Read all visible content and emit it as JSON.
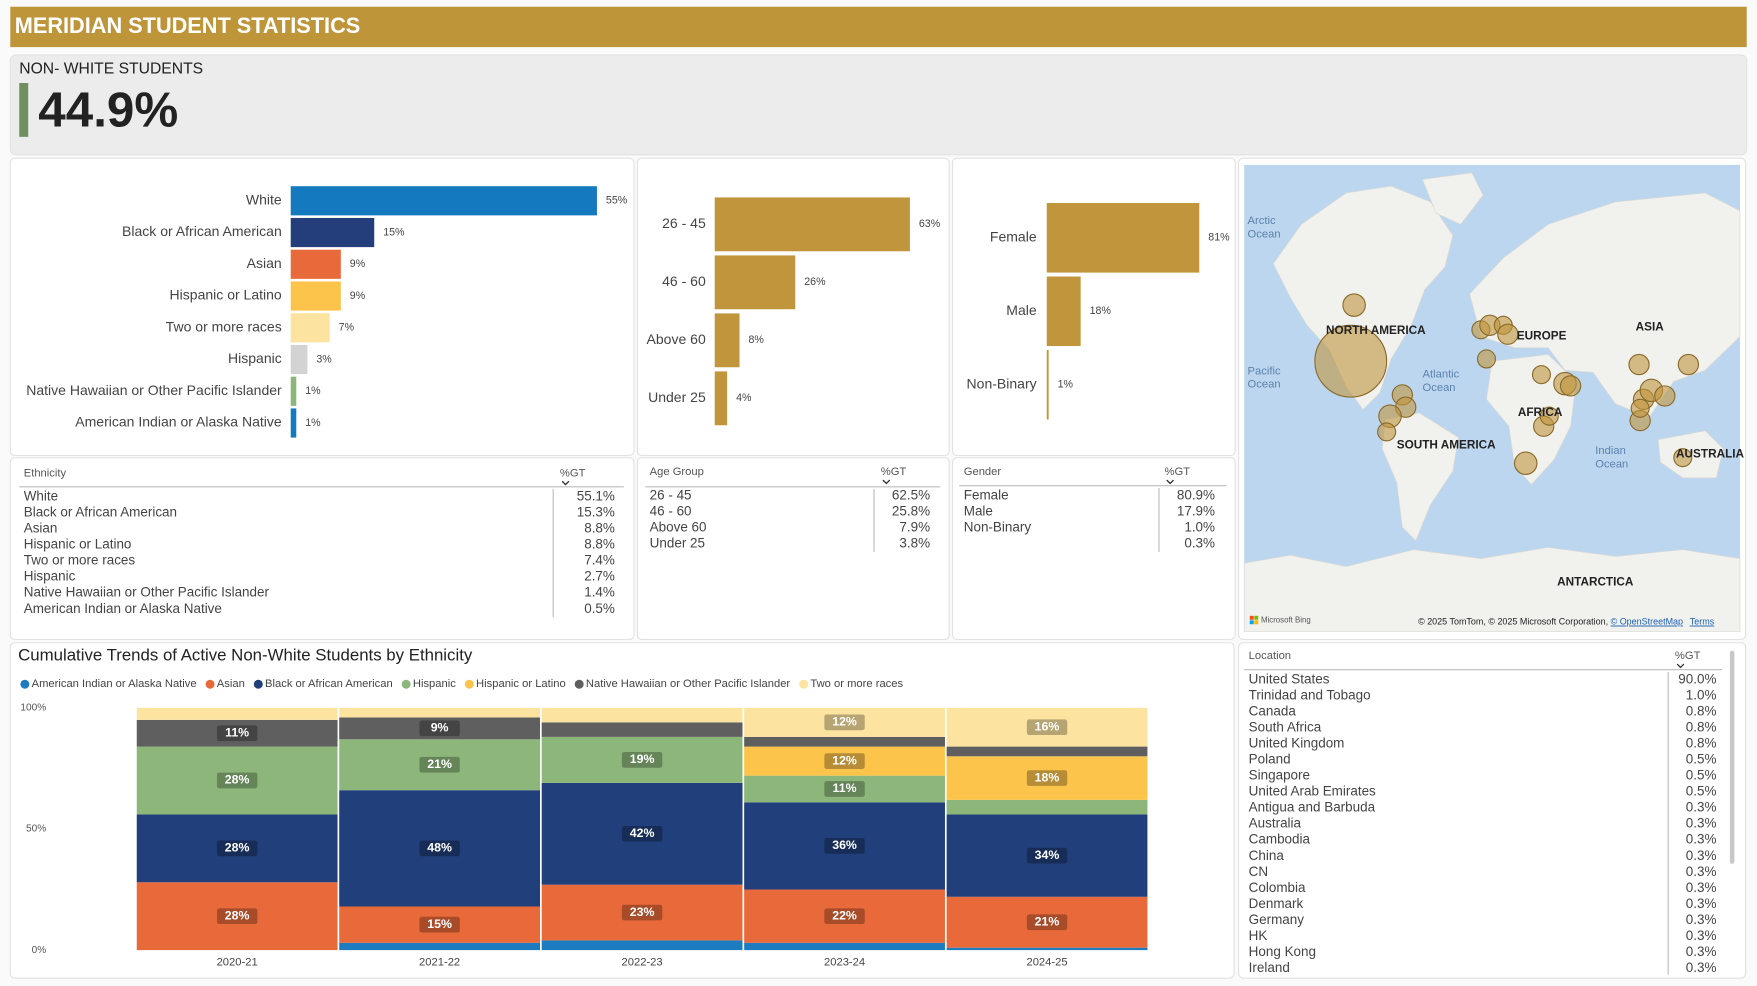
{
  "header": {
    "title": "MERIDIAN STUDENT STATISTICS"
  },
  "kpi": {
    "label": "NON- WHITE STUDENTS",
    "value": "44.9%"
  },
  "chart_data": [
    {
      "type": "bar",
      "orientation": "horizontal",
      "categories": [
        "White",
        "Black or African American",
        "Asian",
        "Hispanic or Latino",
        "Two or more races",
        "Hispanic",
        "Native Hawaiian or Other Pacific Islander",
        "American Indian or Alaska Native"
      ],
      "values": [
        55,
        15,
        9,
        9,
        7,
        3,
        1,
        1
      ],
      "value_labels": [
        "55%",
        "15%",
        "9%",
        "9%",
        "7%",
        "3%",
        "1%",
        "1%"
      ],
      "colors": [
        "#1479bf",
        "#233e7b",
        "#e8693a",
        "#fcc44b",
        "#fde3a0",
        "#d3d3d3",
        "#8db77a",
        "#1479bf"
      ]
    },
    {
      "type": "bar",
      "orientation": "horizontal",
      "categories": [
        "26 - 45",
        "46 - 60",
        "Above 60",
        "Under 25"
      ],
      "values": [
        63,
        26,
        8,
        4
      ],
      "value_labels": [
        "63%",
        "26%",
        "8%",
        "4%"
      ],
      "color": "#c0953b"
    },
    {
      "type": "bar",
      "orientation": "horizontal",
      "categories": [
        "Female",
        "Male",
        "Non-Binary"
      ],
      "values": [
        81,
        18,
        1
      ],
      "value_labels": [
        "81%",
        "18%",
        "1%"
      ],
      "color": "#c0953b"
    },
    {
      "type": "stacked_bar",
      "title": "Cumulative Trends of Active Non-White Students by Ethnicity",
      "categories": [
        "2020-21",
        "2021-22",
        "2022-23",
        "2023-24",
        "2024-25"
      ],
      "ylim": [
        0,
        100
      ],
      "yticks": [
        {
          "value": 0,
          "label": "0%"
        },
        {
          "value": 50,
          "label": "50%"
        },
        {
          "value": 100,
          "label": "100%"
        }
      ],
      "grid": false,
      "legend": "top-left",
      "series": [
        {
          "name": "American Indian or Alaska Native",
          "color": "#1c7cbf",
          "values": [
            0,
            3,
            4,
            3,
            1
          ],
          "value_labels": [
            null,
            null,
            null,
            null,
            null
          ]
        },
        {
          "name": "Asian",
          "color": "#e8693a",
          "values": [
            28,
            15,
            23,
            22,
            21
          ],
          "value_labels": [
            "28%",
            "15%",
            "23%",
            "22%",
            "21%"
          ]
        },
        {
          "name": "Black or African American",
          "color": "#213f7a",
          "values": [
            28,
            48,
            42,
            36,
            34
          ],
          "value_labels": [
            "28%",
            "48%",
            "42%",
            "36%",
            "34%"
          ]
        },
        {
          "name": "Hispanic",
          "color": "#8db77a",
          "values": [
            28,
            21,
            19,
            11,
            6
          ],
          "value_labels": [
            "28%",
            "21%",
            "19%",
            "11%",
            null
          ]
        },
        {
          "name": "Hispanic or Latino",
          "color": "#fcc44b",
          "values": [
            0,
            0,
            0,
            12,
            18
          ],
          "value_labels": [
            null,
            null,
            null,
            "12%",
            "18%"
          ]
        },
        {
          "name": "Native Hawaiian or Other Pacific Islander",
          "color": "#5f5f5f",
          "values": [
            11,
            9,
            6,
            4,
            4
          ],
          "value_labels": [
            "11%",
            "9%",
            null,
            null,
            null
          ]
        },
        {
          "name": "Two or more races",
          "color": "#fce3a0",
          "values": [
            5,
            4,
            6,
            12,
            16
          ],
          "value_labels": [
            null,
            null,
            null,
            "12%",
            "16%"
          ]
        }
      ]
    }
  ],
  "tables": [
    {
      "columns": [
        "Ethnicity",
        "%GT"
      ],
      "rows": [
        [
          "White",
          "55.1%"
        ],
        [
          "Black or African American",
          "15.3%"
        ],
        [
          "Asian",
          "8.8%"
        ],
        [
          "Hispanic or Latino",
          "8.8%"
        ],
        [
          "Two or more races",
          "7.4%"
        ],
        [
          "Hispanic",
          "2.7%"
        ],
        [
          "Native Hawaiian or Other Pacific Islander",
          "1.4%"
        ],
        [
          "American Indian or Alaska Native",
          "0.5%"
        ]
      ]
    },
    {
      "columns": [
        "Age Group",
        "%GT"
      ],
      "rows": [
        [
          "26 - 45",
          "62.5%"
        ],
        [
          "46 - 60",
          "25.8%"
        ],
        [
          "Above 60",
          "7.9%"
        ],
        [
          "Under 25",
          "3.8%"
        ]
      ]
    },
    {
      "columns": [
        "Gender",
        "%GT"
      ],
      "rows": [
        [
          "Female",
          "80.9%"
        ],
        [
          "Male",
          "17.9%"
        ],
        [
          "Non-Binary",
          "1.0%"
        ],
        [
          null,
          "0.3%"
        ]
      ]
    },
    {
      "columns": [
        "Location",
        "%GT"
      ],
      "rows": [
        [
          "United States",
          "90.0%"
        ],
        [
          "Trinidad and Tobago",
          "1.0%"
        ],
        [
          "Canada",
          "0.8%"
        ],
        [
          "South Africa",
          "0.8%"
        ],
        [
          "United Kingdom",
          "0.8%"
        ],
        [
          "Poland",
          "0.5%"
        ],
        [
          "Singapore",
          "0.5%"
        ],
        [
          "United Arab Emirates",
          "0.5%"
        ],
        [
          "Antigua and Barbuda",
          "0.3%"
        ],
        [
          "Australia",
          "0.3%"
        ],
        [
          "Cambodia",
          "0.3%"
        ],
        [
          "China",
          "0.3%"
        ],
        [
          "CN",
          "0.3%"
        ],
        [
          "Colombia",
          "0.3%"
        ],
        [
          "Denmark",
          "0.3%"
        ],
        [
          "Germany",
          "0.3%"
        ],
        [
          "HK",
          "0.3%"
        ],
        [
          "Hong Kong",
          "0.3%"
        ],
        [
          "Ireland",
          "0.3%"
        ]
      ]
    }
  ],
  "map": {
    "labels": [
      [
        "Arctic",
        "Ocean"
      ],
      [
        "NORTH AMERICA"
      ],
      [
        "EUROPE"
      ],
      [
        "ASIA"
      ],
      [
        "Pacific",
        "Ocean"
      ],
      [
        "Atlantic",
        "Ocean"
      ],
      [
        "AFRICA"
      ],
      [
        "SOUTH AMERICA"
      ],
      [
        "Indian",
        "Ocean"
      ],
      [
        "AUSTRALIA"
      ],
      [
        "ANTARCTICA"
      ]
    ],
    "brand": "Microsoft Bing",
    "attribution": "© 2025 TomTom, © 2025 Microsoft Corporation, ",
    "osm": "© OpenStreetMap",
    "terms": "Terms"
  }
}
